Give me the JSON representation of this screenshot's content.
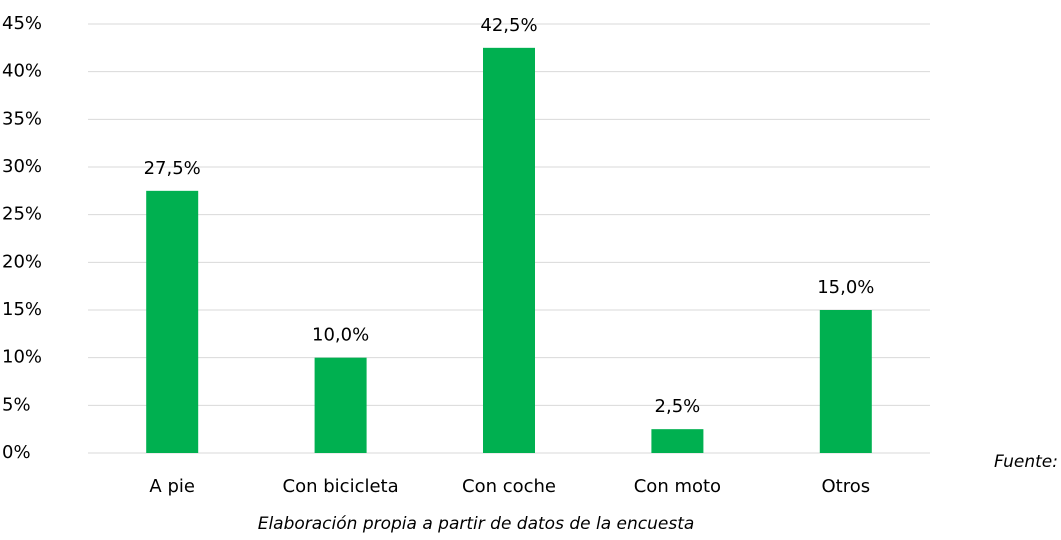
{
  "chart_data": {
    "type": "bar",
    "categories": [
      "A pie",
      "Con bicicleta",
      "Con coche",
      "Con moto",
      "Otros"
    ],
    "values": [
      27.5,
      10,
      42.5,
      2.5,
      15
    ],
    "value_labels": [
      "27,5%",
      "10,0%",
      "42,5%",
      "2,5%",
      "15,0%"
    ],
    "color": "#00b050",
    "ylim": [
      0,
      45
    ],
    "yticks": [
      {
        "value": 0,
        "label": "0%"
      },
      {
        "value": 5,
        "label": "5%"
      },
      {
        "value": 10,
        "label": "10%"
      },
      {
        "value": 15,
        "label": "15%"
      },
      {
        "value": 20,
        "label": "20%"
      },
      {
        "value": 25,
        "label": "25%"
      },
      {
        "value": 30,
        "label": "30%"
      },
      {
        "value": 35,
        "label": "35%"
      },
      {
        "value": 40,
        "label": "40%"
      },
      {
        "value": 45,
        "label": "45%"
      }
    ],
    "grid": true,
    "annotations": [
      "Fuente:",
      "Elaboración propia a partir de datos de la encuesta"
    ]
  }
}
